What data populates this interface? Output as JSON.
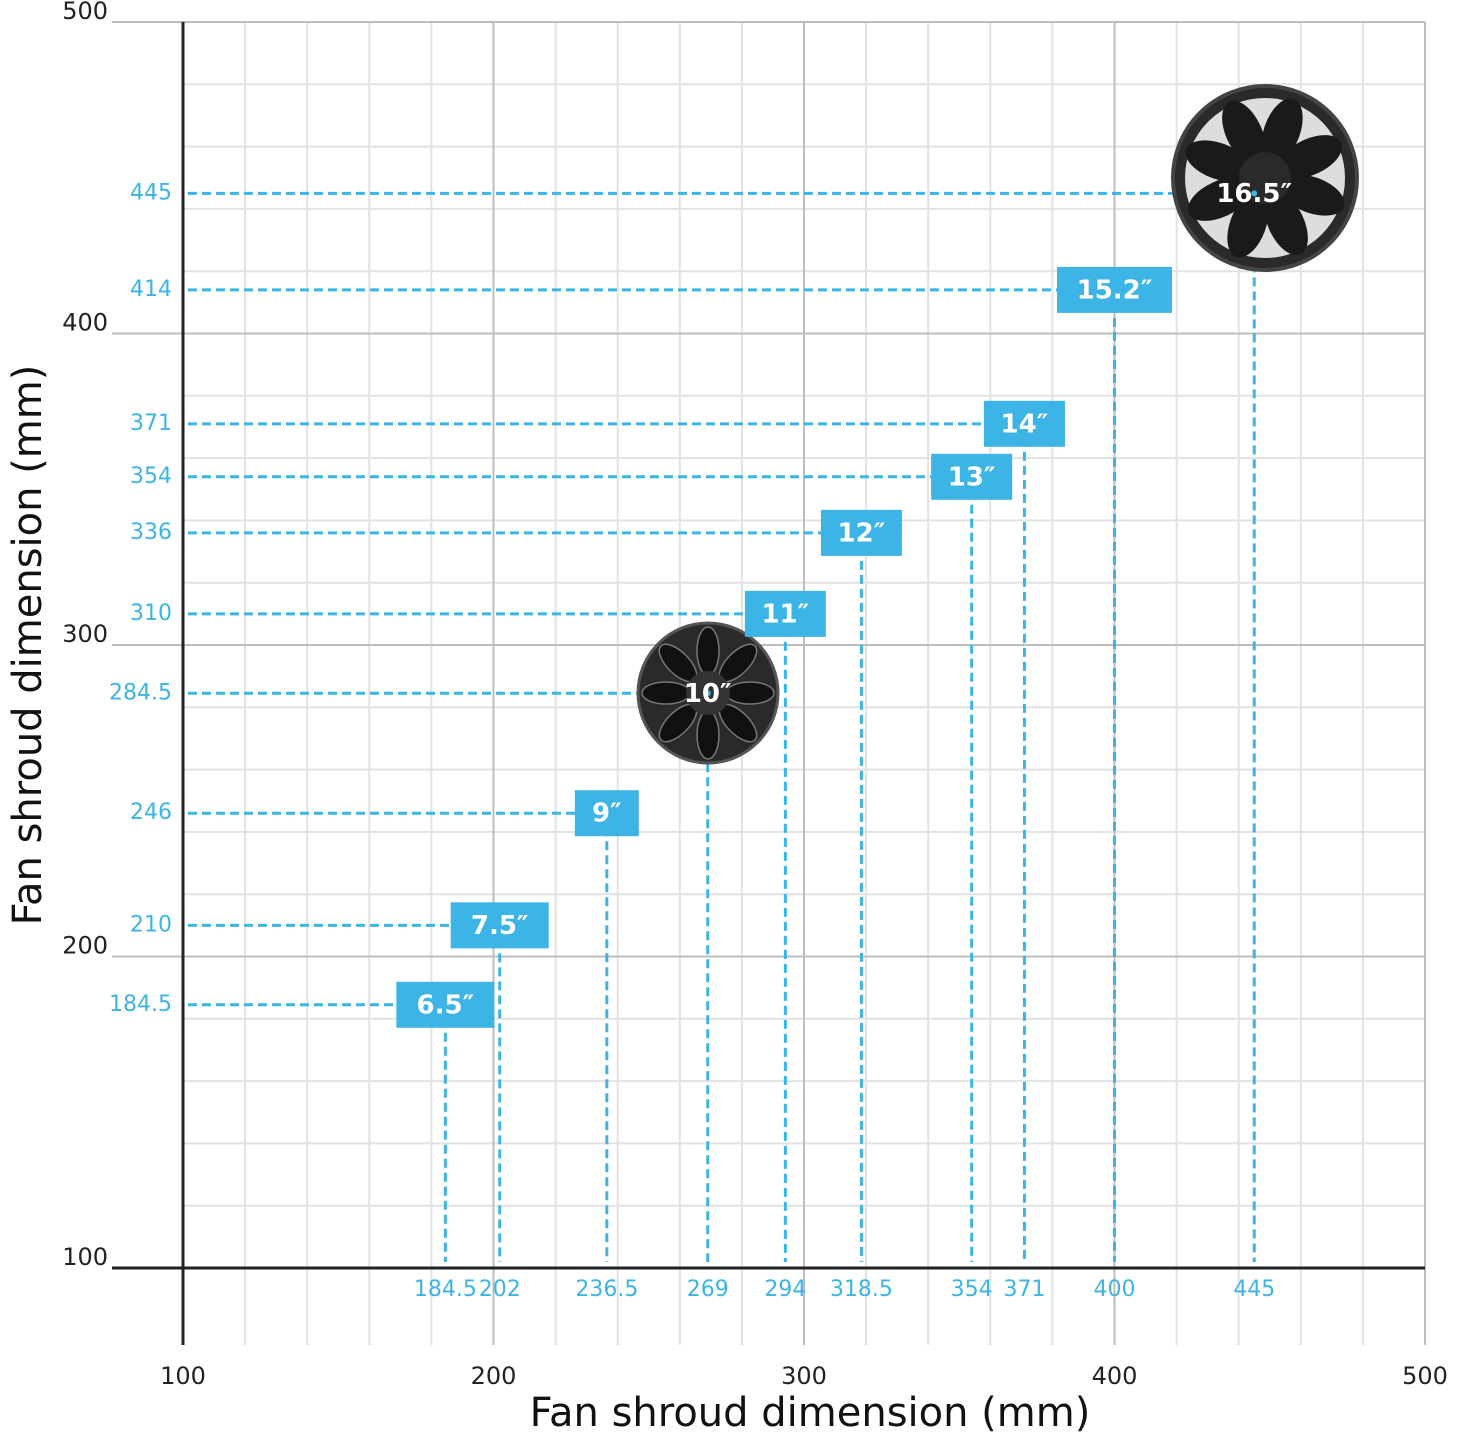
{
  "chart_data": {
    "type": "scatter",
    "x_label": "Fan shroud dimension (mm)",
    "y_label": "Fan shroud dimension (mm)",
    "x": [
      184.5,
      202,
      236.5,
      269,
      294,
      318.5,
      354,
      371,
      400,
      445
    ],
    "series": [
      {
        "color": "#3cb4e5",
        "values": [
          184.5,
          210,
          246,
          284.5,
          310,
          336,
          354,
          371,
          414,
          445
        ],
        "point_labels": [
          "6.5″",
          "7.5″",
          "9″",
          "10″",
          "11″",
          "12″",
          "13″",
          "14″",
          "15.2″",
          "16.5″"
        ]
      }
    ],
    "xlim": [
      100,
      500
    ],
    "ylim": [
      100,
      500
    ],
    "xticks": [
      100,
      200,
      300,
      400,
      500
    ],
    "yticks": [
      100,
      200,
      300,
      400,
      500
    ],
    "xminor": [
      120,
      140,
      160,
      180,
      220,
      240,
      260,
      280,
      320,
      340,
      360,
      380,
      420,
      440,
      460,
      480
    ],
    "yminor": [
      120,
      140,
      160,
      180,
      220,
      240,
      260,
      280,
      320,
      340,
      360,
      380,
      420,
      440,
      460,
      480
    ],
    "grid": true
  }
}
